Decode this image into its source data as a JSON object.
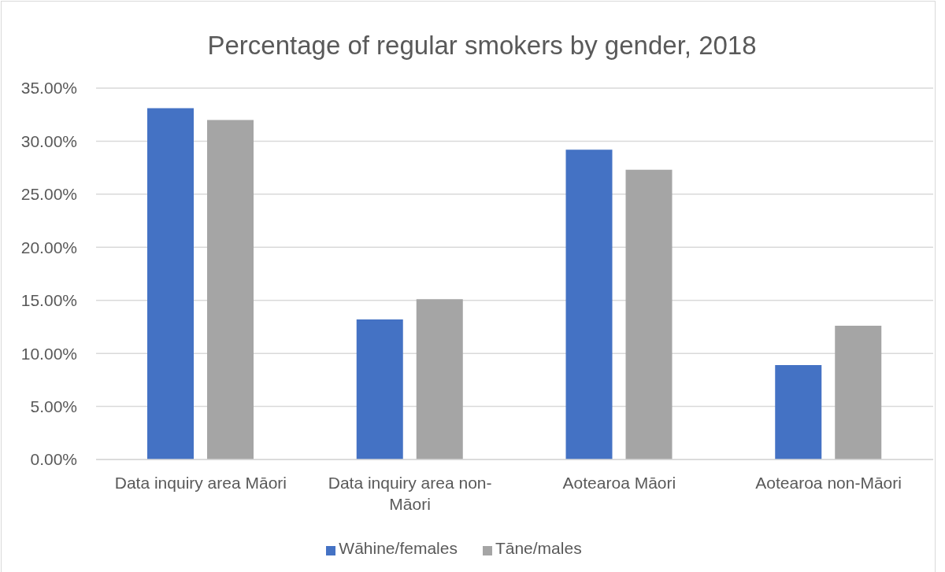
{
  "chart_data": {
    "type": "bar",
    "title": "Percentage of regular smokers by gender, 2018",
    "categories": [
      "Data inquiry area Māori",
      "Data inquiry area non-Māori",
      "Aotearoa Māori",
      "Aotearoa non-Māori"
    ],
    "series": [
      {
        "name": "Wāhine/females",
        "color": "#4472c4",
        "values": [
          33.1,
          13.2,
          29.2,
          8.9
        ]
      },
      {
        "name": "Tāne/males",
        "color": "#a5a5a5",
        "values": [
          32.0,
          15.1,
          27.3,
          12.6
        ]
      }
    ],
    "ylim": [
      0,
      35
    ],
    "yticks": [
      {
        "value": 0,
        "label": "0.00%"
      },
      {
        "value": 5,
        "label": "5.00%"
      },
      {
        "value": 10,
        "label": "10.00%"
      },
      {
        "value": 15,
        "label": "15.00%"
      },
      {
        "value": 20,
        "label": "20.00%"
      },
      {
        "value": 25,
        "label": "25.00%"
      },
      {
        "value": 30,
        "label": "30.00%"
      },
      {
        "value": 35,
        "label": "35.00%"
      }
    ],
    "grid": "y",
    "legend": "bottom"
  }
}
